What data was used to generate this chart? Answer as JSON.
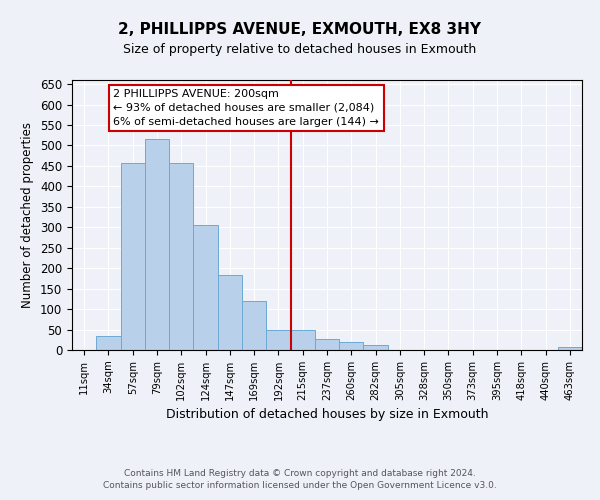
{
  "title": "2, PHILLIPPS AVENUE, EXMOUTH, EX8 3HY",
  "subtitle": "Size of property relative to detached houses in Exmouth",
  "xlabel": "Distribution of detached houses by size in Exmouth",
  "ylabel": "Number of detached properties",
  "bar_labels": [
    "11sqm",
    "34sqm",
    "57sqm",
    "79sqm",
    "102sqm",
    "124sqm",
    "147sqm",
    "169sqm",
    "192sqm",
    "215sqm",
    "237sqm",
    "260sqm",
    "282sqm",
    "305sqm",
    "328sqm",
    "350sqm",
    "373sqm",
    "395sqm",
    "418sqm",
    "440sqm",
    "463sqm"
  ],
  "bar_values": [
    0,
    35,
    458,
    515,
    457,
    305,
    183,
    120,
    50,
    50,
    28,
    20,
    12,
    0,
    0,
    0,
    0,
    0,
    0,
    0,
    8
  ],
  "bar_color": "#b8d0ea",
  "bar_edge_color": "#6aaad4",
  "vline_x": 8.5,
  "vline_color": "#cc0000",
  "ylim": [
    0,
    660
  ],
  "yticks": [
    0,
    50,
    100,
    150,
    200,
    250,
    300,
    350,
    400,
    450,
    500,
    550,
    600,
    650
  ],
  "annotation_title": "2 PHILLIPPS AVENUE: 200sqm",
  "annotation_line1": "← 93% of detached houses are smaller (2,084)",
  "annotation_line2": "6% of semi-detached houses are larger (144) →",
  "annotation_box_color": "#ffffff",
  "annotation_box_edge": "#cc0000",
  "footer_line1": "Contains HM Land Registry data © Crown copyright and database right 2024.",
  "footer_line2": "Contains public sector information licensed under the Open Government Licence v3.0.",
  "background_color": "#eef2f8",
  "plot_bg_color": "#eef2f8"
}
